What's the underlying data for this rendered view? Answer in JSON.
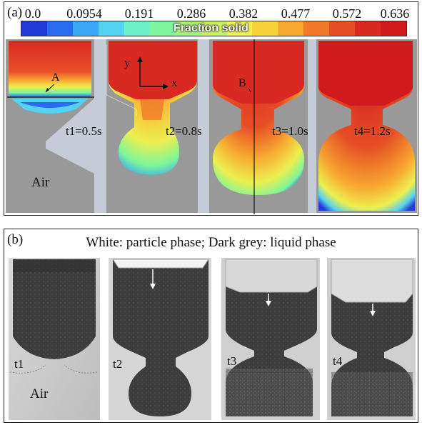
{
  "panel_a": {
    "label": "(a)",
    "colorbar": {
      "title": "Fraction solid",
      "ticks": [
        "0.0",
        "0.0954",
        "0.191",
        "0.286",
        "0.382",
        "0.477",
        "0.572",
        "0.636"
      ],
      "colors": [
        "#1f3ad6",
        "#2a6cf0",
        "#3aa6f5",
        "#56d2f0",
        "#6ef0c8",
        "#7df59a",
        "#a6f07a",
        "#c8f064",
        "#ecf050",
        "#f7d238",
        "#f7a830",
        "#f07a2a",
        "#e64e26",
        "#d82a22",
        "#cf1b1e"
      ]
    },
    "snapshots": [
      {
        "time_label": "t1=0.5s",
        "point_label": "A"
      },
      {
        "time_label": "t2=0.8s"
      },
      {
        "time_label": "t3=1.0s",
        "point_label": "B"
      },
      {
        "time_label": "t4=1.2s"
      }
    ],
    "axis_labels": {
      "y": "y",
      "x": "x"
    },
    "air_label": "Air"
  },
  "panel_b": {
    "label": "(b)",
    "caption": "White: particle phase; Dark grey: liquid phase",
    "snapshots": [
      {
        "time_label": "t1"
      },
      {
        "time_label": "t2"
      },
      {
        "time_label": "t3"
      },
      {
        "time_label": "t4"
      }
    ],
    "air_label": "Air"
  }
}
